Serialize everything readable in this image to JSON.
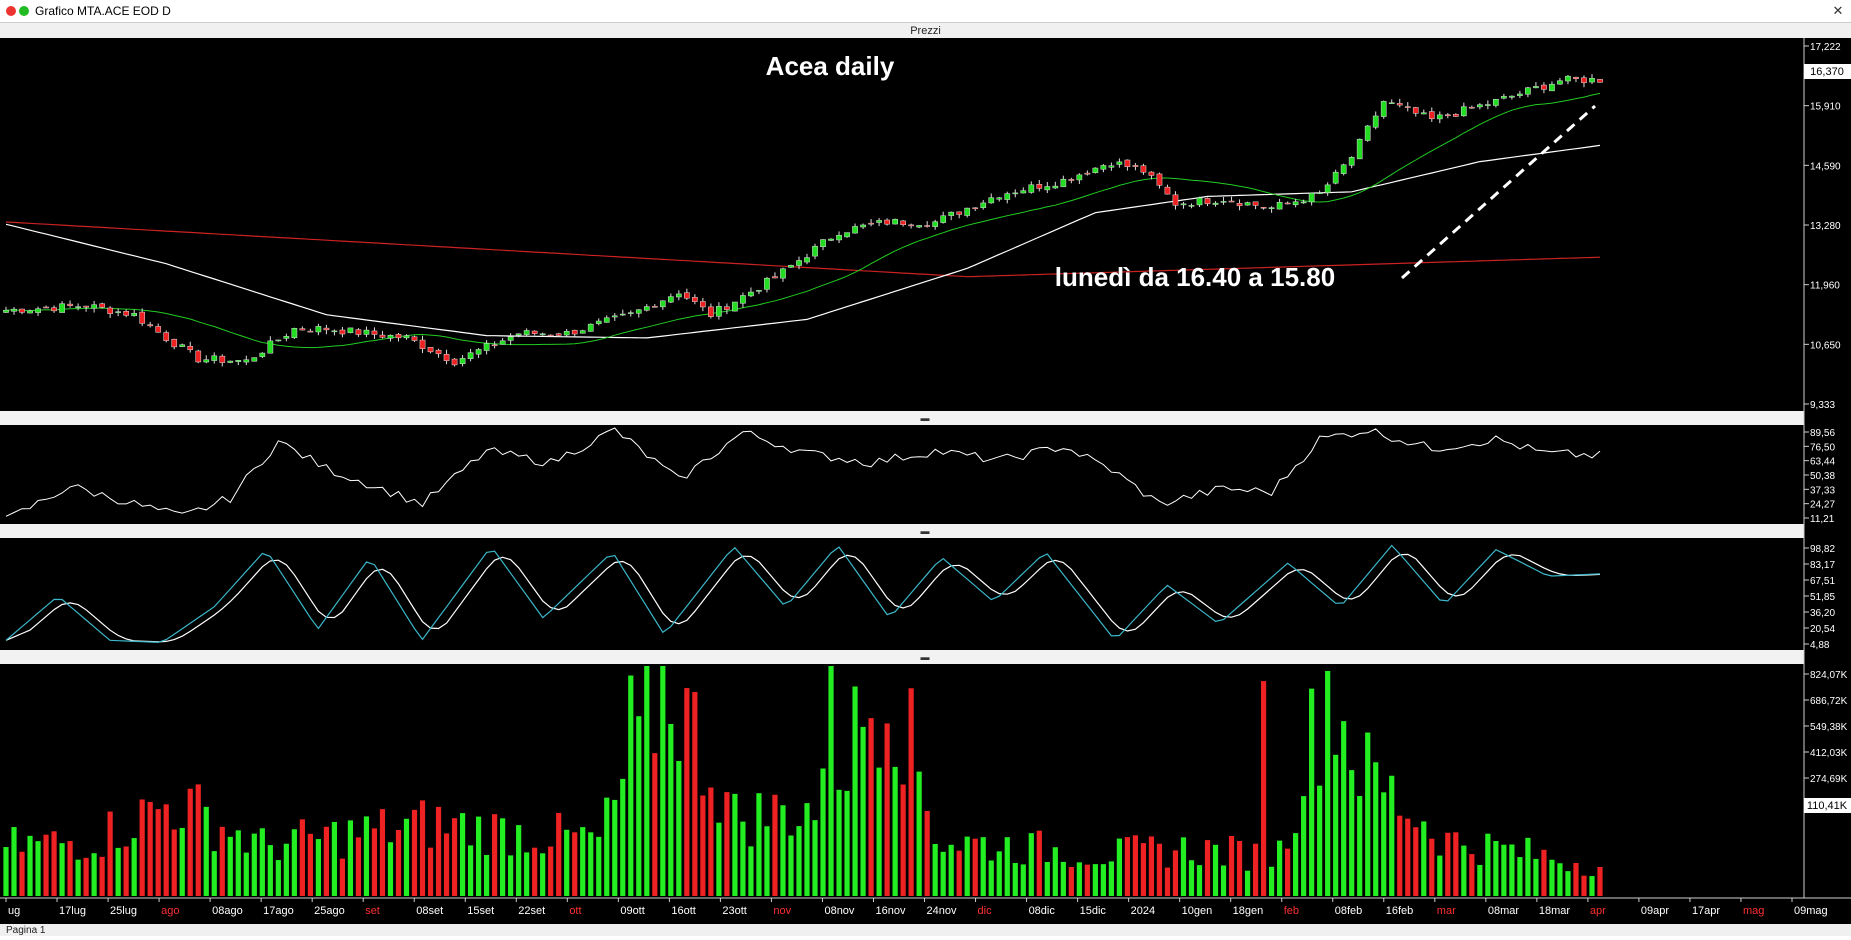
{
  "window": {
    "title": "Grafico MTA.ACE EOD D",
    "panel_title": "Prezzi",
    "close_glyph": "✕",
    "page_tab": "Pagina 1"
  },
  "colors": {
    "background": "#000000",
    "up_candle": "#22dd22",
    "down_candle": "#ee2222",
    "sma_short": "#22cc22",
    "sma_mid": "#ffffff",
    "sma_long": "#cc2222",
    "stoch_k": "#ffffff",
    "stoch_d": "#3ab7c9",
    "volume_up": "#22ee22",
    "volume_down": "#ee2222",
    "axis_text": "#ffffff",
    "month_label": "#ff3030",
    "date_label": "#ffd24a"
  },
  "annotations": {
    "title": "Acea daily",
    "note": "lunedì da 16.40 a 15.80"
  },
  "price_axis": {
    "ticks": [
      "17,222",
      "15,910",
      "14,590",
      "13,280",
      "11,960",
      "10,650",
      "9,333"
    ],
    "last_price": "16,370",
    "tick_values": [
      17.222,
      15.91,
      14.59,
      13.28,
      11.96,
      10.65,
      9.333
    ]
  },
  "rsi_axis": {
    "ticks": [
      "89,56",
      "76,50",
      "63,44",
      "50,38",
      "37,33",
      "24,27",
      "11,21"
    ]
  },
  "stoch_axis": {
    "ticks": [
      "98,82",
      "83,17",
      "67,51",
      "51,85",
      "36,20",
      "20,54",
      "4,88"
    ]
  },
  "volume_axis": {
    "ticks": [
      "824,07K",
      "686,72K",
      "549,38K",
      "412,03K",
      "274,69K",
      "110,41K"
    ],
    "last_volume": "110,41K"
  },
  "date_axis": {
    "labels": [
      {
        "text": "ug",
        "type": "date"
      },
      {
        "text": "17lug",
        "type": "date"
      },
      {
        "text": "25lug",
        "type": "date"
      },
      {
        "text": "ago",
        "type": "month"
      },
      {
        "text": "08ago",
        "type": "date"
      },
      {
        "text": "17ago",
        "type": "date"
      },
      {
        "text": "25ago",
        "type": "date"
      },
      {
        "text": "set",
        "type": "month"
      },
      {
        "text": "08set",
        "type": "date"
      },
      {
        "text": "15set",
        "type": "date"
      },
      {
        "text": "22set",
        "type": "date"
      },
      {
        "text": "ott",
        "type": "month"
      },
      {
        "text": "09ott",
        "type": "date"
      },
      {
        "text": "16ott",
        "type": "date"
      },
      {
        "text": "23ott",
        "type": "date"
      },
      {
        "text": "nov",
        "type": "month"
      },
      {
        "text": "08nov",
        "type": "date"
      },
      {
        "text": "16nov",
        "type": "date"
      },
      {
        "text": "24nov",
        "type": "date"
      },
      {
        "text": "dic",
        "type": "month"
      },
      {
        "text": "08dic",
        "type": "date"
      },
      {
        "text": "15dic",
        "type": "date"
      },
      {
        "text": "2024",
        "type": "date"
      },
      {
        "text": "10gen",
        "type": "date"
      },
      {
        "text": "18gen",
        "type": "date"
      },
      {
        "text": "feb",
        "type": "month"
      },
      {
        "text": "08feb",
        "type": "date"
      },
      {
        "text": "16feb",
        "type": "date"
      },
      {
        "text": "mar",
        "type": "month"
      },
      {
        "text": "08mar",
        "type": "date"
      },
      {
        "text": "18mar",
        "type": "date"
      },
      {
        "text": "apr",
        "type": "month"
      },
      {
        "text": "09apr",
        "type": "date"
      },
      {
        "text": "17apr",
        "type": "date"
      },
      {
        "text": "mag",
        "type": "month"
      },
      {
        "text": "09mag",
        "type": "date"
      }
    ]
  },
  "chart_data": {
    "type": "candlestick",
    "series_count": 150,
    "price_range": [
      9.333,
      17.222
    ],
    "rsi_range": [
      11.21,
      89.56
    ],
    "stoch_range": [
      4.88,
      98.82
    ],
    "volume_range": [
      0,
      824070
    ],
    "price_anchors": [
      [
        0,
        11.4
      ],
      [
        10,
        11.5
      ],
      [
        16,
        11.3
      ],
      [
        20,
        10.8
      ],
      [
        24,
        10.35
      ],
      [
        30,
        10.3
      ],
      [
        36,
        11.0
      ],
      [
        40,
        11.0
      ],
      [
        50,
        10.8
      ],
      [
        56,
        10.3
      ],
      [
        64,
        10.9
      ],
      [
        70,
        10.9
      ],
      [
        78,
        11.3
      ],
      [
        84,
        11.8
      ],
      [
        88,
        11.3
      ],
      [
        96,
        12.1
      ],
      [
        104,
        13.1
      ],
      [
        110,
        13.3
      ],
      [
        116,
        13.3
      ],
      [
        124,
        13.9
      ],
      [
        132,
        14.2
      ],
      [
        138,
        14.6
      ],
      [
        142,
        14.4
      ],
      [
        146,
        13.7
      ],
      [
        152,
        13.8
      ],
      [
        158,
        13.6
      ],
      [
        164,
        13.9
      ],
      [
        168,
        14.7
      ],
      [
        172,
        15.9
      ],
      [
        178,
        15.5
      ],
      [
        186,
        15.9
      ],
      [
        194,
        16.35
      ],
      [
        199,
        16.37
      ]
    ],
    "rsi_anchors": [
      [
        0,
        11
      ],
      [
        8,
        40
      ],
      [
        16,
        25
      ],
      [
        22,
        14
      ],
      [
        28,
        30
      ],
      [
        34,
        78
      ],
      [
        40,
        55
      ],
      [
        46,
        40
      ],
      [
        52,
        25
      ],
      [
        60,
        70
      ],
      [
        68,
        60
      ],
      [
        76,
        88
      ],
      [
        84,
        45
      ],
      [
        92,
        86
      ],
      [
        100,
        68
      ],
      [
        108,
        60
      ],
      [
        116,
        70
      ],
      [
        124,
        62
      ],
      [
        132,
        74
      ],
      [
        138,
        54
      ],
      [
        144,
        25
      ],
      [
        152,
        38
      ],
      [
        158,
        35
      ],
      [
        164,
        80
      ],
      [
        170,
        88
      ],
      [
        178,
        72
      ],
      [
        186,
        80
      ],
      [
        192,
        68
      ],
      [
        199,
        66
      ]
    ],
    "stoch_k_anchors": [
      [
        0,
        10
      ],
      [
        6,
        50
      ],
      [
        12,
        10
      ],
      [
        18,
        8
      ],
      [
        24,
        40
      ],
      [
        30,
        92
      ],
      [
        36,
        20
      ],
      [
        42,
        85
      ],
      [
        48,
        10
      ],
      [
        56,
        95
      ],
      [
        62,
        30
      ],
      [
        70,
        90
      ],
      [
        76,
        15
      ],
      [
        84,
        95
      ],
      [
        90,
        40
      ],
      [
        96,
        96
      ],
      [
        102,
        30
      ],
      [
        108,
        85
      ],
      [
        114,
        45
      ],
      [
        120,
        90
      ],
      [
        128,
        10
      ],
      [
        134,
        60
      ],
      [
        140,
        25
      ],
      [
        148,
        80
      ],
      [
        154,
        40
      ],
      [
        160,
        96
      ],
      [
        166,
        42
      ],
      [
        172,
        92
      ],
      [
        178,
        68
      ],
      [
        184,
        70
      ]
    ],
    "volume_anchors": [
      [
        0,
        180000
      ],
      [
        10,
        200000
      ],
      [
        20,
        340000
      ],
      [
        30,
        180000
      ],
      [
        40,
        220000
      ],
      [
        50,
        260000
      ],
      [
        60,
        230000
      ],
      [
        70,
        200000
      ],
      [
        78,
        790000
      ],
      [
        86,
        280000
      ],
      [
        96,
        320000
      ],
      [
        104,
        824000
      ],
      [
        110,
        200000
      ],
      [
        118,
        180000
      ],
      [
        130,
        150000
      ],
      [
        140,
        170000
      ],
      [
        150,
        140000
      ],
      [
        156,
        770000
      ],
      [
        160,
        450000
      ],
      [
        170,
        200000
      ],
      [
        180,
        150000
      ],
      [
        188,
        110000
      ]
    ]
  }
}
